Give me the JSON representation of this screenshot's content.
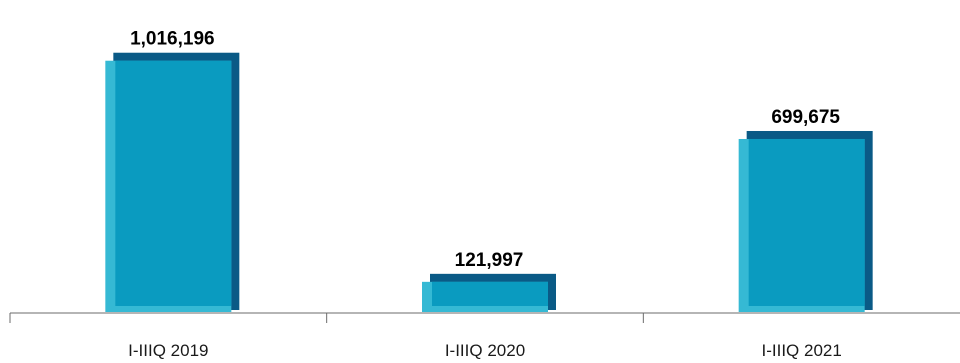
{
  "chart_data": {
    "type": "bar",
    "categories": [
      "I-IIIQ 2019",
      "I-IIIQ 2020",
      "I-IIIQ 2021"
    ],
    "values": [
      1016196,
      121997,
      699675
    ],
    "value_labels": [
      "1,016,196",
      "121,997",
      "699,675"
    ],
    "title": "",
    "xlabel": "",
    "ylabel": "",
    "ylim": [
      0,
      1100000
    ],
    "grid": false,
    "legend": "none",
    "colors": {
      "bar_main": "#0a9bc0",
      "bar_light": "#35b9d4",
      "bar_shadow": "#0a5a86",
      "axis": "#6b6b6b",
      "text": "#000000"
    }
  }
}
